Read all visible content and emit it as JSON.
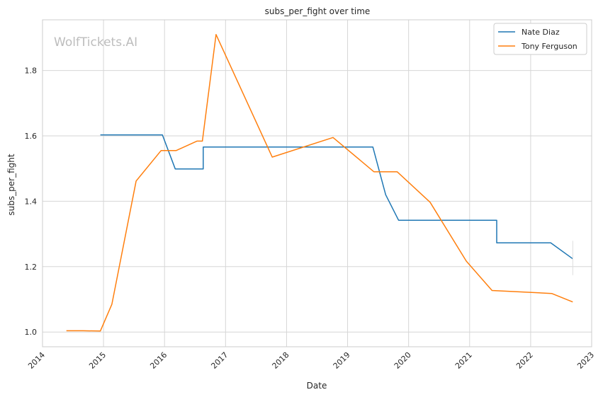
{
  "chart_data": {
    "type": "line",
    "title": "subs_per_fight over time",
    "xlabel": "Date",
    "ylabel": "subs_per_fight",
    "watermark": "WolfTickets.AI",
    "xlim": [
      "2014-01-01",
      "2023-01-01"
    ],
    "ylim": [
      0.955,
      1.955
    ],
    "x_ticks": [
      "2014",
      "2015",
      "2016",
      "2017",
      "2018",
      "2019",
      "2020",
      "2021",
      "2022",
      "2023"
    ],
    "y_ticks": [
      "1.0",
      "1.2",
      "1.4",
      "1.6",
      "1.8"
    ],
    "grid": true,
    "legend_position": "top-right",
    "series": [
      {
        "name": "Nate Diaz",
        "color": "#1f77b4",
        "points": [
          [
            "2014-12-13",
            1.603
          ],
          [
            "2015-12-19",
            1.603
          ],
          [
            "2016-03-05",
            1.499
          ],
          [
            "2016-08-20",
            1.499
          ],
          [
            "2016-08-20",
            1.566
          ],
          [
            "2019-06-01",
            1.566
          ],
          [
            "2019-08-17",
            1.42
          ],
          [
            "2019-11-02",
            1.342
          ],
          [
            "2021-06-12",
            1.342
          ],
          [
            "2021-06-12",
            1.273
          ],
          [
            "2022-05-01",
            1.273
          ],
          [
            "2022-09-10",
            1.224
          ]
        ]
      },
      {
        "name": "Tony Ferguson",
        "color": "#ff7f0e",
        "points": [
          [
            "2014-05-24",
            1.004
          ],
          [
            "2014-09-01",
            1.004
          ],
          [
            "2014-12-13",
            1.003
          ],
          [
            "2015-02-20",
            1.085
          ],
          [
            "2015-07-15",
            1.462
          ],
          [
            "2015-12-11",
            1.555
          ],
          [
            "2016-03-10",
            1.555
          ],
          [
            "2016-07-13",
            1.584
          ],
          [
            "2016-08-15",
            1.584
          ],
          [
            "2016-11-05",
            1.91
          ],
          [
            "2017-10-07",
            1.535
          ],
          [
            "2018-10-06",
            1.595
          ],
          [
            "2019-06-08",
            1.49
          ],
          [
            "2019-10-25",
            1.49
          ],
          [
            "2020-05-09",
            1.397
          ],
          [
            "2020-12-12",
            1.217
          ],
          [
            "2021-05-15",
            1.127
          ],
          [
            "2022-05-07",
            1.118
          ],
          [
            "2022-09-10",
            1.092
          ]
        ]
      }
    ]
  }
}
